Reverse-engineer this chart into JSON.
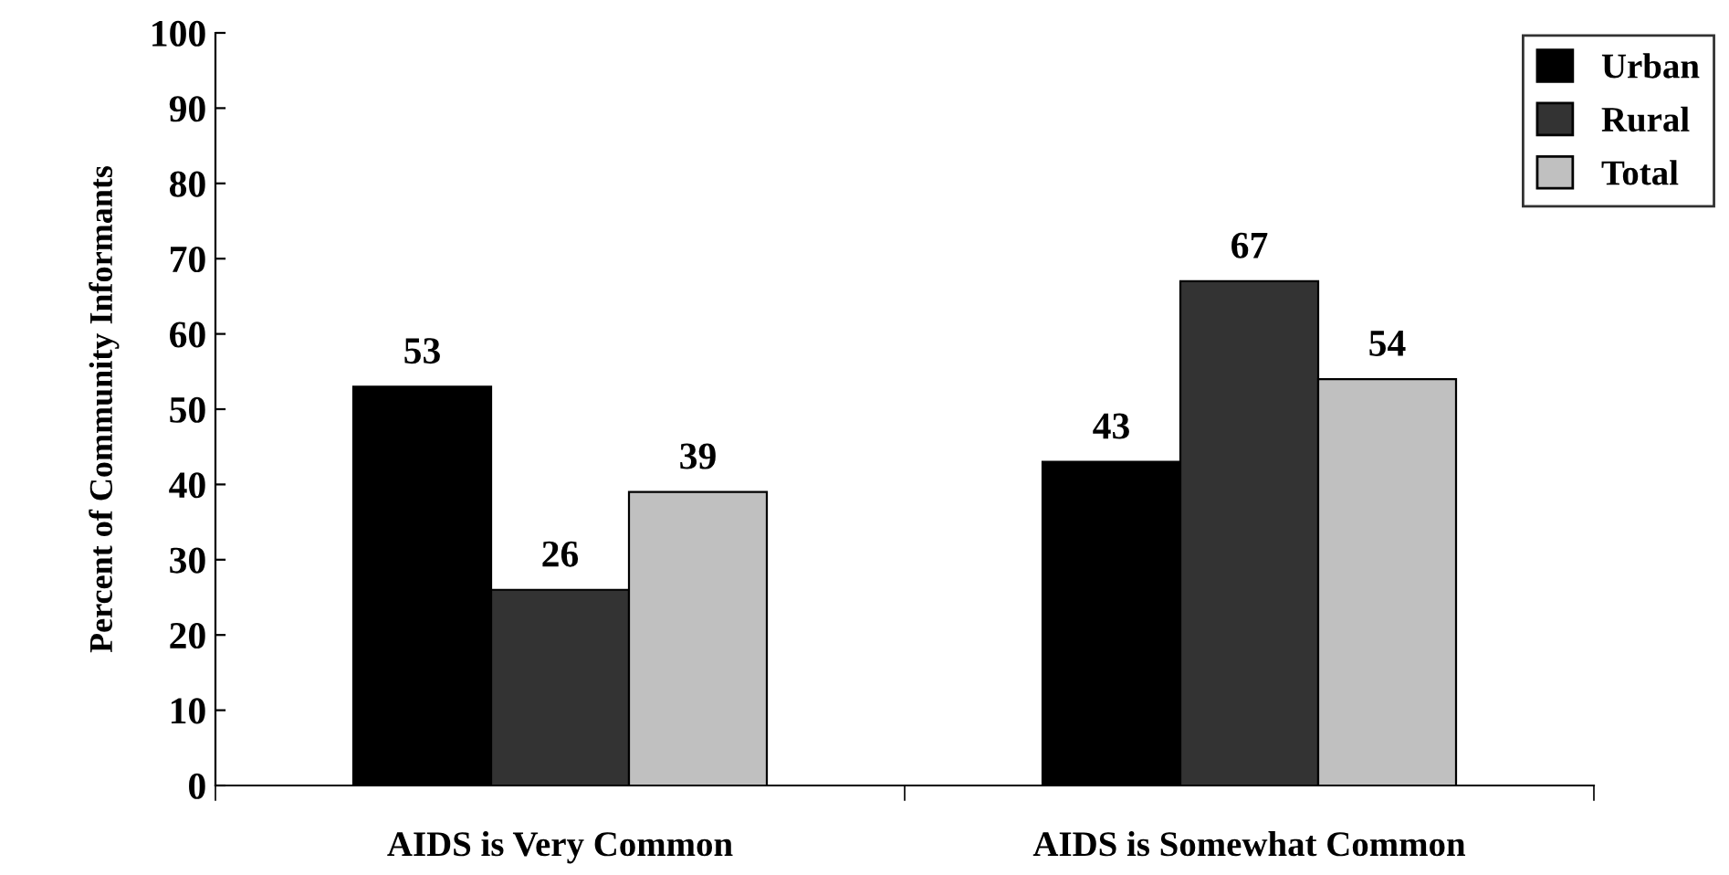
{
  "chart_data": {
    "type": "bar",
    "ylabel": "Percent of Community Informants",
    "categories": [
      "AIDS is Very Common",
      "AIDS is Somewhat Common"
    ],
    "series": [
      {
        "name": "Urban",
        "color": "#000000",
        "values": [
          53,
          43
        ]
      },
      {
        "name": "Rural",
        "color": "#333333",
        "values": [
          26,
          67
        ]
      },
      {
        "name": "Total",
        "color": "#c0c0c0",
        "values": [
          39,
          54
        ]
      }
    ],
    "ylim": [
      0,
      100
    ],
    "yticks": [
      0,
      10,
      20,
      30,
      40,
      50,
      60,
      70,
      80,
      90,
      100
    ],
    "grid": false,
    "legend": "top right",
    "data_labels": true
  }
}
